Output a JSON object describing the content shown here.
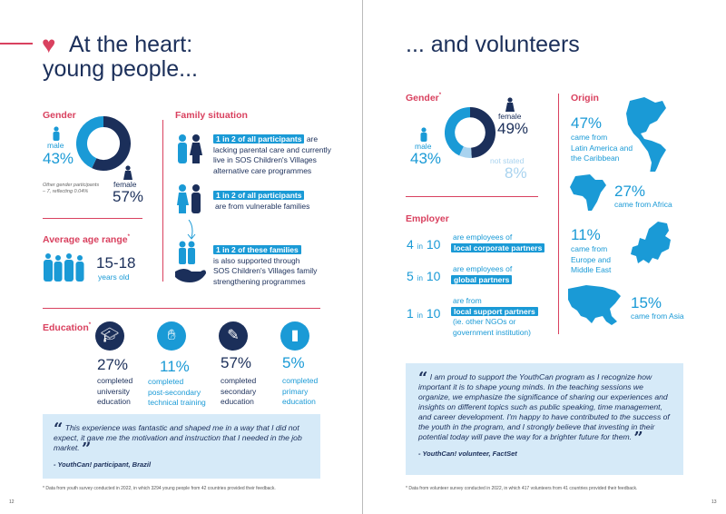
{
  "colors": {
    "navy": "#1b2f5a",
    "blue": "#1a9ad6",
    "pink": "#d9415f",
    "quote_bg": "#d6eaf8"
  },
  "left": {
    "title_line1": "At the heart:",
    "title_line2": "young people...",
    "gender": {
      "heading": "Gender",
      "male_label": "male",
      "male_pct": "43%",
      "female_label": "female",
      "female_pct": "57%",
      "male_value": 43,
      "female_value": 57,
      "note_line1": "Other gender participants",
      "note_line2": "– 7, reflecting 0.04%"
    },
    "family": {
      "heading": "Family situation",
      "rows": [
        {
          "highlight": "1 in 2 of all participants",
          "text1": " are",
          "lines": [
            "lacking parental care and currently",
            "live in SOS Children's Villages",
            "alternative care programmes"
          ]
        },
        {
          "highlight": "1 in 2 of all participants",
          "lines": [
            "are from vulnerable families"
          ]
        },
        {
          "highlight": "1 in 2 of these families",
          "lines": [
            "is also supported through",
            "SOS Children's Villages family",
            "strengthening programmes"
          ]
        }
      ]
    },
    "age": {
      "heading": "Average age range",
      "range": "15-18",
      "unit": "years old"
    },
    "education": {
      "heading": "Education",
      "items": [
        {
          "pct": "27%",
          "lines": [
            "completed",
            "university",
            "education"
          ],
          "icon": "graduation-cap-icon"
        },
        {
          "pct": "11%",
          "lines": [
            "completed",
            "post-secondary",
            "technical training"
          ],
          "icon": "technician-icon"
        },
        {
          "pct": "57%",
          "lines": [
            "completed",
            "secondary",
            "education"
          ],
          "icon": "student-desk-icon"
        },
        {
          "pct": "5%",
          "lines": [
            "completed",
            "primary",
            "education"
          ],
          "icon": "book-icon"
        }
      ]
    },
    "quote": {
      "text": "This experience was fantastic and shaped me in a way that I did not expect, it gave me the motivation and instruction that I needed in the job market.",
      "author": "- YouthCan! participant, Brazil"
    },
    "footnote": "* Data from youth survey conducted in 2022, in which 3294 young people from 42 countries provided their feedback.",
    "page": "12"
  },
  "right": {
    "title": "... and volunteers",
    "gender": {
      "heading": "Gender",
      "female_label": "female",
      "female_pct": "49%",
      "male_label": "male",
      "male_pct": "43%",
      "ns_label": "not stated",
      "ns_pct": "8%",
      "female_value": 49,
      "male_value": 43,
      "ns_value": 8
    },
    "origin": {
      "heading": "Origin",
      "items": [
        {
          "pct": "47%",
          "lines": [
            "came from",
            "Latin America and",
            "the Caribbean"
          ]
        },
        {
          "pct": "27%",
          "lines": [
            "came from Africa"
          ]
        },
        {
          "pct": "11%",
          "lines": [
            "came from",
            "Europe and",
            "Middle East"
          ]
        },
        {
          "pct": "15%",
          "lines": [
            "came from Asia"
          ]
        }
      ]
    },
    "employer": {
      "heading": "Employer",
      "in": "in",
      "rows": [
        {
          "n": "4",
          "d": "10",
          "pre": "are employees of",
          "hl": "local corporate partners",
          "post": []
        },
        {
          "n": "5",
          "d": "10",
          "pre": "are employees of",
          "hl": "global partners",
          "post": []
        },
        {
          "n": "1",
          "d": "10",
          "pre": "are from",
          "hl": "local support partners",
          "post": [
            "(ie. other NGOs or",
            "government institution)"
          ]
        }
      ]
    },
    "quote": {
      "text": "I am proud to support the YouthCan program as I recognize how important it is to shape young minds. In the teaching sessions we organize, we emphasize the significance of sharing our experiences and insights on different topics such as public speaking, time management, and career development. I'm happy to have contributed to the success of the youth in the program, and I strongly believe that investing in their potential today will pave the way for a brighter future for them.",
      "author": "- YouthCan! volunteer, FactSet"
    },
    "footnote": "* Data from volunteer survey conducted in 2022, in which 417 volunteers from 41 countries provided their feedback.",
    "page": "13"
  }
}
